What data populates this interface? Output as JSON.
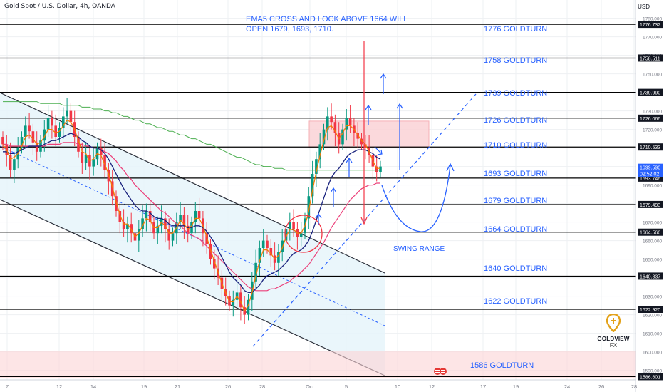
{
  "header": {
    "symbol": "Gold Spot / U.S. Dollar, 4h, OANDA",
    "currency": "USD"
  },
  "annotation": {
    "line1": "EMA5 CROSS AND LOCK ABOVE 1664 WILL",
    "line2": "OPEN 1679, 1693, 1710.",
    "swing": "SWING RANGE"
  },
  "logo": {
    "name": "GOLDVIEW",
    "suffix": "FX"
  },
  "colors": {
    "annotation": "#2962ff",
    "level_line": "#000000",
    "bull": "#089981",
    "bear": "#f23645",
    "ema_fast": "#f57c00",
    "ema_mid": "#1a237e",
    "ema_slow": "#ec407a",
    "ema_long": "#4caf50",
    "highlight": "#fbd3d6"
  },
  "chart_data": {
    "type": "candlestick",
    "title": "",
    "ylim": [
      1586,
      1786
    ],
    "y_ticks": [
      1590,
      1600,
      1610,
      1620,
      1630,
      1640,
      1650,
      1660,
      1670,
      1680,
      1690,
      1700,
      1710,
      1720,
      1730,
      1740,
      1750,
      1760,
      1770,
      1780
    ],
    "x_ticks": [
      "7",
      "12",
      "14",
      "19",
      "21",
      "26",
      "28",
      "Oct",
      "5",
      "10",
      "12",
      "17",
      "19",
      "24",
      "26",
      "28"
    ],
    "current_price": {
      "value": "1699.590",
      "countdown": "02:52:02"
    },
    "levels": [
      {
        "value": 1776.732,
        "label": "1776 GOLDTURN",
        "price_tag": "1776.732"
      },
      {
        "value": 1758.511,
        "label": "1758 GOLDTURN",
        "price_tag": "1758.511"
      },
      {
        "value": 1739.99,
        "label": "1739 GOLDTURN",
        "price_tag": "1739.990"
      },
      {
        "value": 1726.066,
        "label": "1726 GOLDTURN",
        "price_tag": "1726.066"
      },
      {
        "value": 1710.533,
        "label": "1710 GOLDTURN",
        "price_tag": "1710.533"
      },
      {
        "value": 1693.746,
        "label": "1693 GOLDTURN",
        "price_tag": "1693.746"
      },
      {
        "value": 1679.493,
        "label": "1679 GOLDTURN",
        "price_tag": "1679.493"
      },
      {
        "value": 1664.566,
        "label": "1664 GOLDTURN",
        "price_tag": "1664.566"
      },
      {
        "value": 1640.837,
        "label": "1640 GOLDTURN",
        "price_tag": "1640.837"
      },
      {
        "value": 1622.92,
        "label": "1622 GOLDTURN",
        "price_tag": "1622.920"
      },
      {
        "value": 1586.601,
        "label": "1586 GOLDTURN",
        "price_tag": "1586.601"
      }
    ],
    "close": [
      1712,
      1706,
      1698,
      1704,
      1710,
      1716,
      1722,
      1719,
      1713,
      1708,
      1714,
      1720,
      1726,
      1722,
      1716,
      1721,
      1727,
      1730,
      1724,
      1716,
      1708,
      1702,
      1706,
      1700,
      1704,
      1710,
      1706,
      1698,
      1692,
      1684,
      1676,
      1670,
      1666,
      1669,
      1664,
      1660,
      1666,
      1672,
      1676,
      1670,
      1664,
      1668,
      1672,
      1666,
      1660,
      1664,
      1670,
      1674,
      1668,
      1664,
      1670,
      1676,
      1672,
      1664,
      1658,
      1650,
      1645,
      1640,
      1634,
      1630,
      1625,
      1628,
      1632,
      1624,
      1620,
      1628,
      1638,
      1648,
      1656,
      1660,
      1656,
      1652,
      1648,
      1654,
      1660,
      1666,
      1670,
      1666,
      1662,
      1664,
      1672,
      1684,
      1696,
      1704,
      1712,
      1720,
      1727,
      1724,
      1718,
      1712,
      1720,
      1726,
      1722,
      1718,
      1715,
      1712,
      1710,
      1706,
      1700,
      1697,
      1700
    ],
    "ema_fast": [
      1712,
      1709,
      1704,
      1705,
      1707,
      1711,
      1716,
      1717,
      1715,
      1712,
      1713,
      1716,
      1720,
      1720,
      1718,
      1719,
      1722,
      1725,
      1724,
      1720,
      1714,
      1708,
      1707,
      1703,
      1704,
      1707,
      1706,
      1701,
      1696,
      1689,
      1681,
      1674,
      1669,
      1669,
      1666,
      1662,
      1664,
      1668,
      1672,
      1671,
      1667,
      1667,
      1670,
      1668,
      1664,
      1664,
      1667,
      1671,
      1669,
      1666,
      1668,
      1672,
      1672,
      1668,
      1662,
      1655,
      1649,
      1643,
      1637,
      1632,
      1627,
      1627,
      1630,
      1627,
      1622,
      1625,
      1632,
      1641,
      1649,
      1655,
      1655,
      1653,
      1650,
      1652,
      1656,
      1662,
      1666,
      1666,
      1664,
      1664,
      1668,
      1676,
      1687,
      1697,
      1706,
      1714,
      1721,
      1722,
      1719,
      1715,
      1718,
      1722,
      1722,
      1720,
      1717,
      1714,
      1712,
      1708,
      1703,
      1699,
      1699
    ],
    "ema_mid": [
      1708,
      1708,
      1707,
      1707,
      1708,
      1709,
      1710,
      1711,
      1711,
      1711,
      1711,
      1712,
      1713,
      1714,
      1714,
      1715,
      1716,
      1717,
      1718,
      1717,
      1716,
      1714,
      1713,
      1711,
      1710,
      1710,
      1709,
      1707,
      1704,
      1700,
      1696,
      1692,
      1688,
      1685,
      1682,
      1679,
      1677,
      1676,
      1676,
      1675,
      1673,
      1672,
      1672,
      1671,
      1669,
      1668,
      1668,
      1668,
      1668,
      1667,
      1667,
      1668,
      1668,
      1667,
      1665,
      1662,
      1659,
      1655,
      1651,
      1647,
      1643,
      1640,
      1638,
      1636,
      1633,
      1632,
      1632,
      1634,
      1636,
      1639,
      1641,
      1642,
      1643,
      1644,
      1646,
      1648,
      1651,
      1653,
      1654,
      1655,
      1657,
      1660,
      1665,
      1671,
      1677,
      1683,
      1689,
      1694,
      1697,
      1699,
      1702,
      1705,
      1707,
      1708,
      1709,
      1709,
      1709,
      1708,
      1707,
      1705,
      1704
    ],
    "ema_slow": [
      1712,
      1712,
      1711,
      1711,
      1711,
      1711,
      1711,
      1711,
      1711,
      1711,
      1711,
      1711,
      1712,
      1712,
      1712,
      1712,
      1713,
      1713,
      1713,
      1713,
      1712,
      1712,
      1711,
      1711,
      1710,
      1710,
      1709,
      1708,
      1707,
      1705,
      1703,
      1700,
      1698,
      1695,
      1693,
      1690,
      1688,
      1686,
      1684,
      1682,
      1680,
      1678,
      1676,
      1675,
      1673,
      1671,
      1669,
      1668,
      1666,
      1664,
      1663,
      1662,
      1661,
      1659,
      1657,
      1655,
      1653,
      1651,
      1649,
      1647,
      1645,
      1643,
      1641,
      1639,
      1637,
      1635,
      1634,
      1633,
      1633,
      1633,
      1633,
      1634,
      1634,
      1635,
      1636,
      1637,
      1638,
      1640,
      1641,
      1643,
      1645,
      1647,
      1650,
      1653,
      1656,
      1659,
      1663,
      1667,
      1670,
      1673,
      1676,
      1679,
      1682,
      1684,
      1686,
      1688,
      1689,
      1690,
      1690,
      1691,
      1691
    ],
    "ema_long": [
      1735,
      1735,
      1735,
      1735,
      1735,
      1735,
      1735,
      1735,
      1735,
      1735,
      1734,
      1734,
      1734,
      1734,
      1734,
      1734,
      1733,
      1733,
      1733,
      1733,
      1733,
      1732,
      1732,
      1732,
      1731,
      1731,
      1731,
      1730,
      1730,
      1729,
      1729,
      1728,
      1727,
      1727,
      1726,
      1725,
      1725,
      1724,
      1723,
      1723,
      1722,
      1721,
      1721,
      1720,
      1719,
      1719,
      1718,
      1717,
      1717,
      1716,
      1715,
      1715,
      1714,
      1713,
      1712,
      1712,
      1711,
      1710,
      1709,
      1708,
      1707,
      1706,
      1705,
      1705,
      1704,
      1703,
      1702,
      1701,
      1701,
      1700,
      1700,
      1700,
      1699,
      1699,
      1699,
      1698,
      1698,
      1698,
      1698,
      1698,
      1698,
      1698,
      1698,
      1698,
      1698,
      1698,
      1698,
      1698,
      1698,
      1698,
      1698,
      1698,
      1698,
      1698,
      1698,
      1698,
      1698,
      1698,
      1698,
      1698,
      1698
    ]
  }
}
